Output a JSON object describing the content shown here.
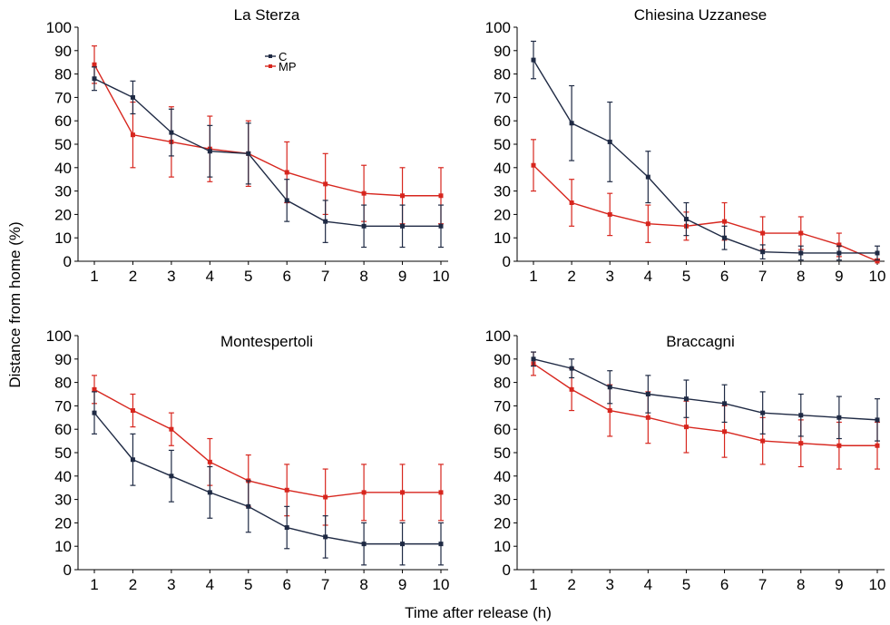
{
  "colors": {
    "C": "#1f2a44",
    "MP": "#d7261e"
  },
  "shared": {
    "ylabel": "Distance from home (%)",
    "xlabel": "Time after release (h)",
    "x": [
      1,
      2,
      3,
      4,
      5,
      6,
      7,
      8,
      9,
      10
    ],
    "y_ticks": [
      0,
      10,
      20,
      30,
      40,
      50,
      60,
      70,
      80,
      90,
      100
    ],
    "legend": [
      "C",
      "MP"
    ]
  },
  "chart_data": [
    {
      "type": "line",
      "title": "La Sterza",
      "xlim": [
        1,
        10
      ],
      "ylim": [
        0,
        100
      ],
      "legend_position": "top-right",
      "series": [
        {
          "name": "C",
          "values": [
            78,
            70,
            55,
            47,
            46,
            26,
            17,
            15,
            15,
            15
          ],
          "err": [
            5,
            7,
            10,
            11,
            13,
            9,
            9,
            9,
            9,
            9
          ]
        },
        {
          "name": "MP",
          "values": [
            84,
            54,
            51,
            48,
            46,
            38,
            33,
            29,
            28,
            28
          ],
          "err": [
            8,
            14,
            15,
            14,
            14,
            13,
            13,
            12,
            12,
            12
          ]
        }
      ]
    },
    {
      "type": "line",
      "title": "Chiesina Uzzanese",
      "xlim": [
        1,
        10
      ],
      "ylim": [
        0,
        100
      ],
      "series": [
        {
          "name": "C",
          "values": [
            86,
            59,
            51,
            36,
            18,
            10,
            4,
            3.5,
            3.5,
            3.5
          ],
          "err": [
            8,
            16,
            17,
            11,
            7,
            5,
            3,
            3,
            3,
            3
          ]
        },
        {
          "name": "MP",
          "values": [
            41,
            25,
            20,
            16,
            15,
            17,
            12,
            12,
            7,
            0
          ],
          "err": [
            11,
            10,
            9,
            8,
            6,
            8,
            7,
            7,
            5,
            1
          ]
        }
      ]
    },
    {
      "type": "line",
      "title": "Montespertoli",
      "xlim": [
        1,
        10
      ],
      "ylim": [
        0,
        100
      ],
      "series": [
        {
          "name": "C",
          "values": [
            67,
            47,
            40,
            33,
            27,
            18,
            14,
            11,
            11,
            11
          ],
          "err": [
            9,
            11,
            11,
            11,
            11,
            9,
            9,
            9,
            9,
            9
          ]
        },
        {
          "name": "MP",
          "values": [
            77,
            68,
            60,
            46,
            38,
            34,
            31,
            33,
            33,
            33
          ],
          "err": [
            6,
            7,
            7,
            10,
            11,
            11,
            12,
            12,
            12,
            12
          ]
        }
      ]
    },
    {
      "type": "line",
      "title": "Braccagni",
      "xlim": [
        1,
        10
      ],
      "ylim": [
        0,
        100
      ],
      "series": [
        {
          "name": "C",
          "values": [
            90,
            86,
            78,
            75,
            73,
            71,
            67,
            66,
            65,
            64
          ],
          "err": [
            3,
            4,
            7,
            8,
            8,
            8,
            9,
            9,
            9,
            9
          ]
        },
        {
          "name": "MP",
          "values": [
            88,
            77,
            68,
            65,
            61,
            59,
            55,
            54,
            53,
            53
          ],
          "err": [
            5,
            9,
            11,
            11,
            11,
            11,
            10,
            10,
            10,
            10
          ]
        }
      ]
    }
  ]
}
